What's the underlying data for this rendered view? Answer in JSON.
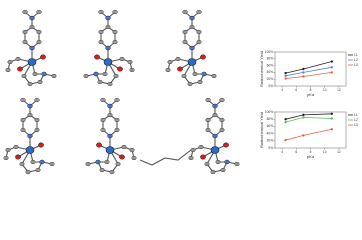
{
  "chart_data": [
    {
      "type": "line",
      "ylabel": "Radiochemical Yield",
      "xlabel": "pKa",
      "xlim": [
        3,
        13
      ],
      "xticks": [
        4,
        6,
        8,
        10,
        12
      ],
      "ylim": [
        0,
        100
      ],
      "yticks": [
        {
          "value": 0,
          "label": "0%"
        },
        {
          "value": 20,
          "label": "20%"
        },
        {
          "value": 40,
          "label": "40%"
        },
        {
          "value": 60,
          "label": "60%"
        },
        {
          "value": 80,
          "label": "80%"
        },
        {
          "value": 100,
          "label": "100%"
        }
      ],
      "series": [
        {
          "name": "L1",
          "color": "#222222",
          "x": [
            4.5,
            7,
            11
          ],
          "values": [
            38,
            50,
            72
          ]
        },
        {
          "name": "L2",
          "color": "#5a7fd6",
          "x": [
            4.5,
            7,
            11
          ],
          "values": [
            30,
            40,
            55
          ]
        },
        {
          "name": "L3",
          "color": "#e0604a",
          "x": [
            4.5,
            7,
            11
          ],
          "values": [
            22,
            28,
            40
          ]
        }
      ]
    },
    {
      "type": "line",
      "ylabel": "Radiochemical Yield",
      "xlabel": "pKa",
      "xlim": [
        3,
        13
      ],
      "xticks": [
        4,
        6,
        8,
        10,
        12
      ],
      "ylim": [
        0,
        100
      ],
      "yticks": [
        {
          "value": 0,
          "label": "0%"
        },
        {
          "value": 20,
          "label": "20%"
        },
        {
          "value": 40,
          "label": "40%"
        },
        {
          "value": 60,
          "label": "60%"
        },
        {
          "value": 80,
          "label": "80%"
        },
        {
          "value": 100,
          "label": "100%"
        }
      ],
      "series": [
        {
          "name": "L1",
          "color": "#222222",
          "x": [
            4.5,
            7,
            11
          ],
          "values": [
            80,
            92,
            95
          ]
        },
        {
          "name": "L2",
          "color": "#5cb85c",
          "x": [
            4.5,
            7,
            11
          ],
          "values": [
            72,
            85,
            82
          ]
        },
        {
          "name": "L3",
          "color": "#e0604a",
          "x": [
            4.5,
            7,
            11
          ],
          "values": [
            22,
            35,
            52
          ]
        }
      ]
    }
  ]
}
